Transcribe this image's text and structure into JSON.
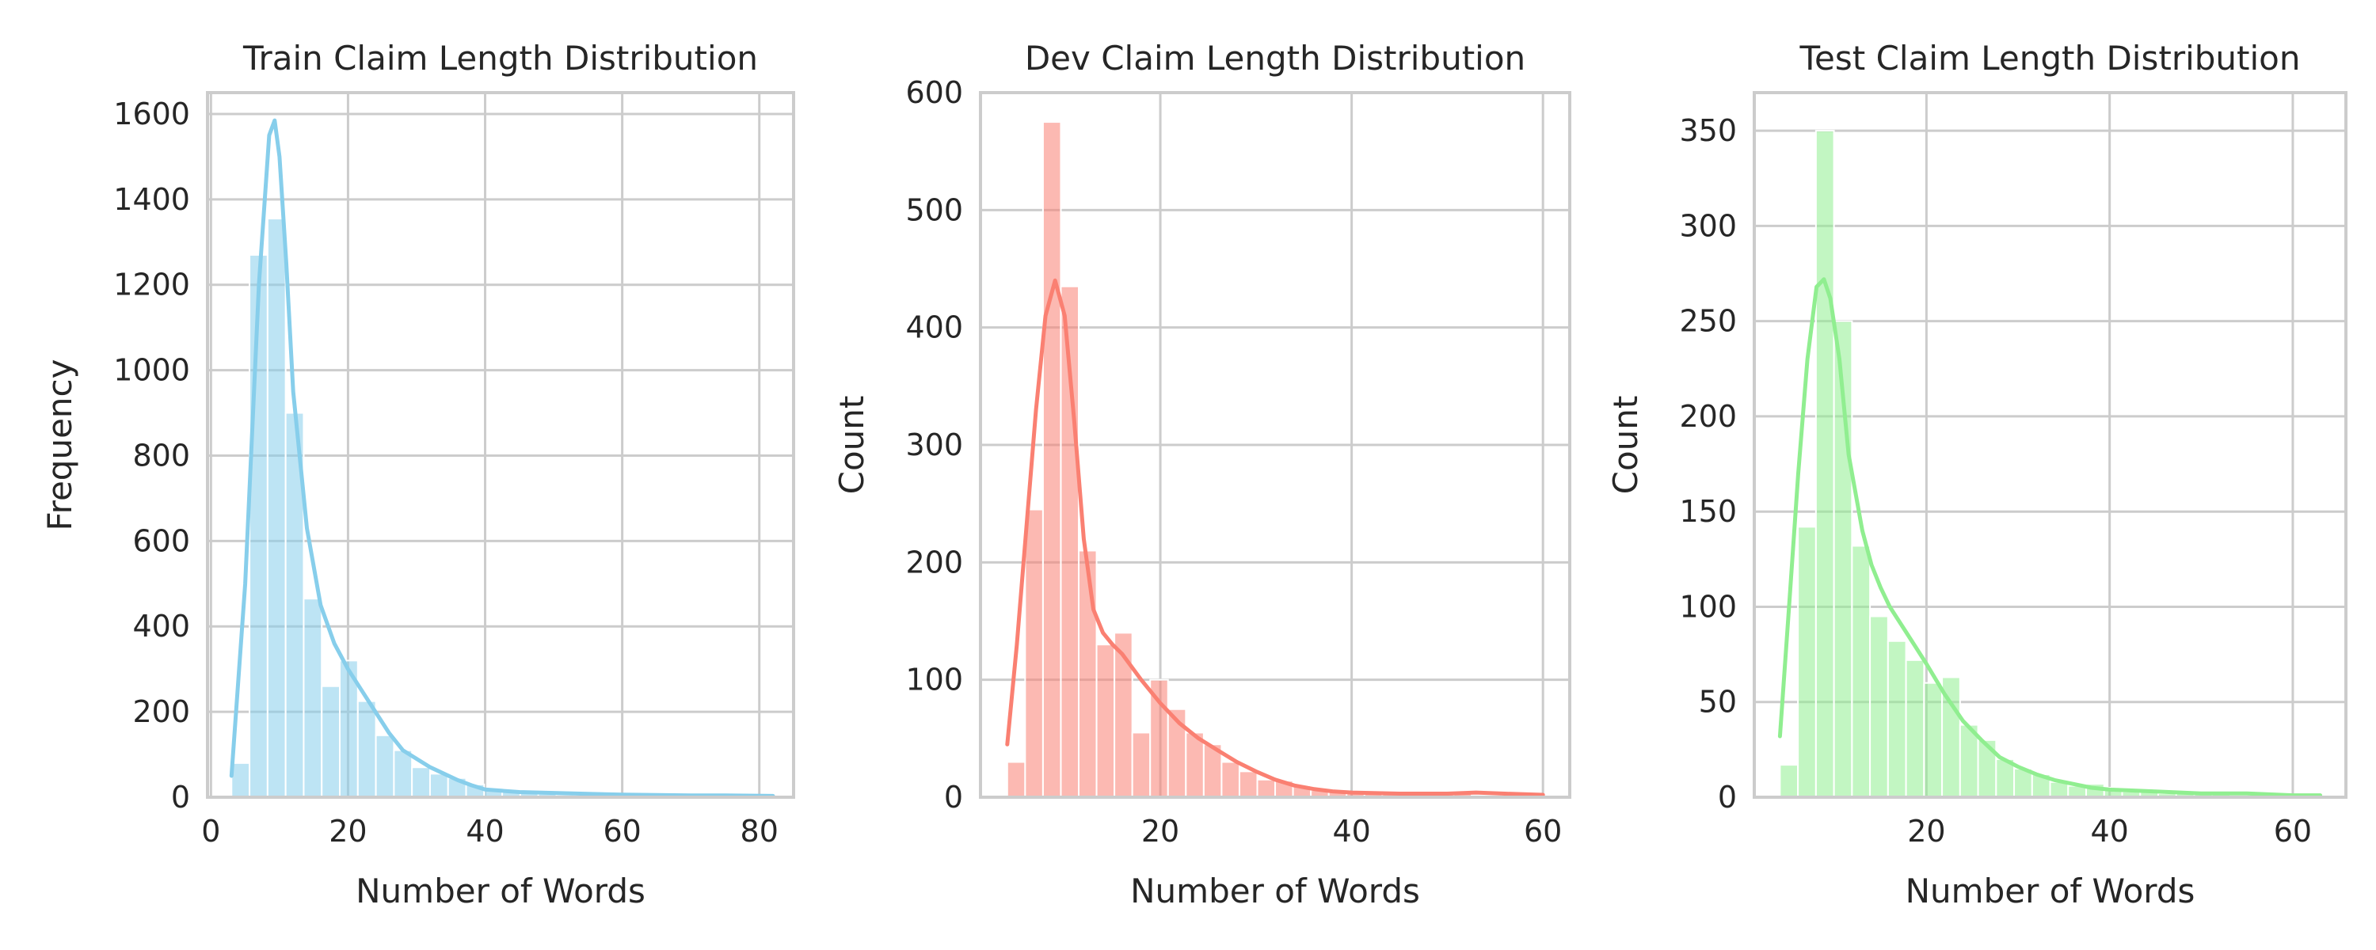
{
  "chart_data": [
    {
      "type": "bar",
      "title": "Train Claim Length Distribution",
      "xlabel": "Number of Words",
      "ylabel": "Frequency",
      "xlim": [
        -0.5,
        85
      ],
      "ylim": [
        0,
        1650
      ],
      "xticks": [
        0,
        20,
        40,
        60,
        80
      ],
      "yticks": [
        0,
        200,
        400,
        600,
        800,
        1000,
        1200,
        1400,
        1600
      ],
      "grid": true,
      "bar_color": "#87CEEB",
      "line_color": "#87CEEB",
      "bins": {
        "start": 3,
        "width": 2.633,
        "counts": [
          80,
          1270,
          1355,
          900,
          465,
          260,
          320,
          225,
          145,
          110,
          70,
          55,
          45,
          30,
          20,
          15,
          10,
          8,
          6,
          5,
          4,
          4,
          3,
          3,
          2,
          2,
          2,
          2,
          1,
          1
        ]
      },
      "kde": [
        [
          3,
          50
        ],
        [
          5,
          500
        ],
        [
          7,
          1200
        ],
        [
          8.5,
          1550
        ],
        [
          9.3,
          1585
        ],
        [
          10,
          1500
        ],
        [
          11,
          1250
        ],
        [
          12,
          950
        ],
        [
          14,
          630
        ],
        [
          16,
          450
        ],
        [
          18,
          360
        ],
        [
          20,
          300
        ],
        [
          22,
          250
        ],
        [
          24,
          200
        ],
        [
          26,
          150
        ],
        [
          28,
          110
        ],
        [
          30,
          90
        ],
        [
          32,
          70
        ],
        [
          34,
          55
        ],
        [
          36,
          40
        ],
        [
          38,
          28
        ],
        [
          40,
          18
        ],
        [
          45,
          12
        ],
        [
          50,
          10
        ],
        [
          55,
          8
        ],
        [
          60,
          6
        ],
        [
          65,
          5
        ],
        [
          70,
          4
        ],
        [
          75,
          4
        ],
        [
          82,
          3
        ]
      ]
    },
    {
      "type": "bar",
      "title": "Dev Claim Length Distribution",
      "xlabel": "Number of Words",
      "ylabel": "Count",
      "xlim": [
        1.2,
        62.8
      ],
      "ylim": [
        0,
        600
      ],
      "xticks": [
        20,
        40,
        60
      ],
      "yticks": [
        0,
        100,
        200,
        300,
        400,
        500,
        600
      ],
      "grid": true,
      "bar_color": "#FA8072",
      "line_color": "#FA8072",
      "bins": {
        "start": 4,
        "width": 1.867,
        "counts": [
          30,
          245,
          575,
          435,
          210,
          130,
          140,
          55,
          100,
          75,
          55,
          45,
          30,
          22,
          15,
          14,
          10,
          6,
          5,
          4,
          3,
          3,
          2,
          3,
          5,
          3,
          2,
          2,
          1,
          1
        ]
      },
      "kde": [
        [
          4,
          45
        ],
        [
          5,
          130
        ],
        [
          6,
          230
        ],
        [
          7,
          330
        ],
        [
          8,
          410
        ],
        [
          9,
          440
        ],
        [
          10,
          410
        ],
        [
          11,
          320
        ],
        [
          12,
          220
        ],
        [
          13,
          160
        ],
        [
          14,
          140
        ],
        [
          15,
          130
        ],
        [
          16,
          122
        ],
        [
          18,
          100
        ],
        [
          20,
          80
        ],
        [
          22,
          63
        ],
        [
          24,
          50
        ],
        [
          26,
          40
        ],
        [
          28,
          30
        ],
        [
          30,
          22
        ],
        [
          32,
          15
        ],
        [
          34,
          10
        ],
        [
          36,
          7
        ],
        [
          38,
          5
        ],
        [
          40,
          4
        ],
        [
          45,
          3
        ],
        [
          50,
          3
        ],
        [
          53,
          4
        ],
        [
          56,
          3
        ],
        [
          60,
          2
        ]
      ]
    },
    {
      "type": "bar",
      "title": "Test Claim Length Distribution",
      "xlabel": "Number of Words",
      "ylabel": "Count",
      "xlim": [
        1.2,
        65.8
      ],
      "ylim": [
        0,
        370
      ],
      "xticks": [
        20,
        40,
        60
      ],
      "yticks": [
        0,
        50,
        100,
        150,
        200,
        250,
        300,
        350
      ],
      "grid": true,
      "bar_color": "#90EE90",
      "line_color": "#90EE90",
      "bins": {
        "start": 4,
        "width": 1.967,
        "counts": [
          17,
          142,
          350,
          250,
          132,
          95,
          82,
          72,
          60,
          63,
          38,
          30,
          20,
          15,
          12,
          8,
          6,
          7,
          5,
          3,
          3,
          2,
          2,
          2,
          2,
          1,
          1,
          1,
          1,
          1
        ]
      },
      "kde": [
        [
          4,
          32
        ],
        [
          5,
          100
        ],
        [
          6,
          170
        ],
        [
          7,
          230
        ],
        [
          8,
          268
        ],
        [
          8.8,
          272
        ],
        [
          9.5,
          262
        ],
        [
          10.5,
          230
        ],
        [
          11.5,
          180
        ],
        [
          13,
          140
        ],
        [
          14,
          122
        ],
        [
          15,
          110
        ],
        [
          16,
          100
        ],
        [
          18,
          85
        ],
        [
          20,
          70
        ],
        [
          22,
          54
        ],
        [
          24,
          40
        ],
        [
          26,
          30
        ],
        [
          28,
          21
        ],
        [
          30,
          16
        ],
        [
          32,
          12
        ],
        [
          34,
          9
        ],
        [
          36,
          7
        ],
        [
          38,
          5
        ],
        [
          40,
          4
        ],
        [
          45,
          3
        ],
        [
          50,
          2
        ],
        [
          55,
          2
        ],
        [
          60,
          1
        ],
        [
          63,
          1
        ]
      ]
    }
  ]
}
